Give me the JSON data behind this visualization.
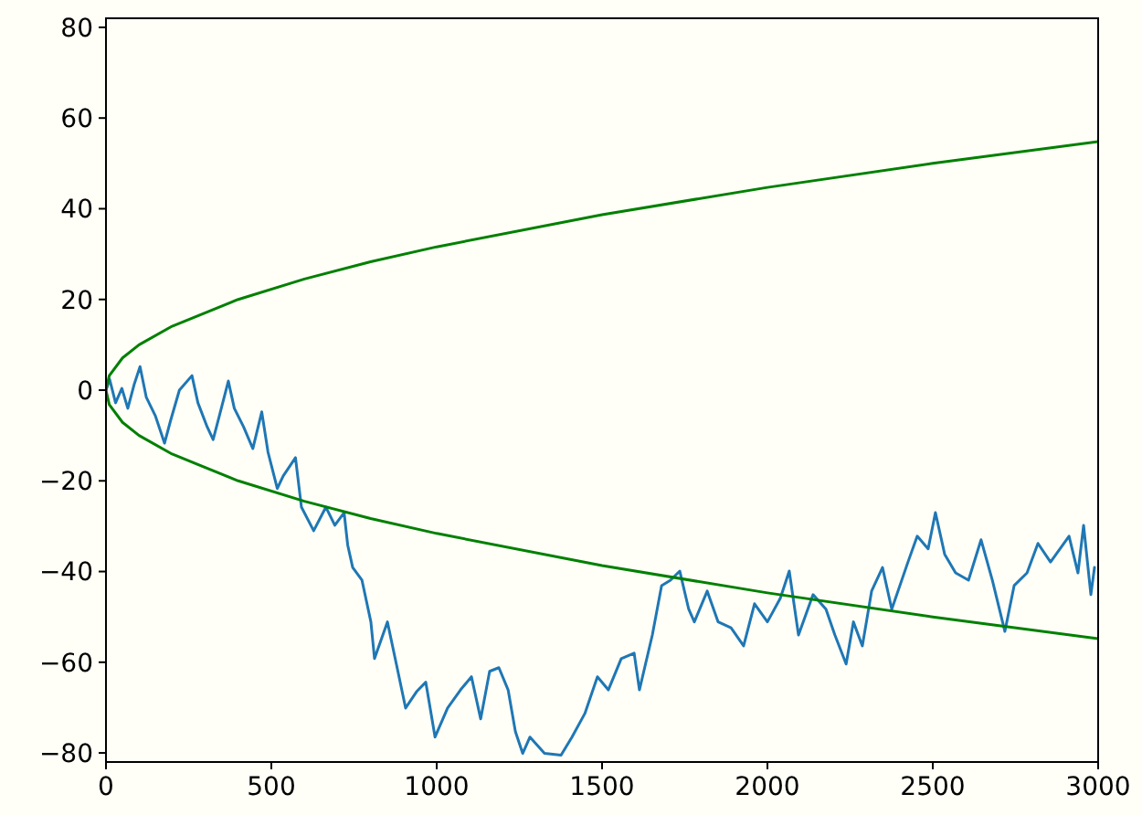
{
  "chart_data": {
    "type": "line",
    "xlim": [
      0,
      3000
    ],
    "ylim": [
      -82,
      82
    ],
    "xticks": [
      0,
      500,
      1000,
      1500,
      2000,
      2500,
      3000
    ],
    "yticks": [
      -80,
      -60,
      -40,
      -20,
      0,
      20,
      40,
      60,
      80
    ],
    "grid": false,
    "marker": "none",
    "line_style": "solid",
    "series": [
      {
        "color": "#1f77b4",
        "x": [
          0,
          11,
          29,
          48,
          66,
          85,
          103,
          122,
          149,
          177,
          195,
          222,
          260,
          278,
          306,
          324,
          343,
          370,
          388,
          416,
          444,
          471,
          490,
          518,
          536,
          573,
          591,
          628,
          665,
          692,
          720,
          731,
          746,
          774,
          801,
          812,
          851,
          878,
          906,
          939,
          967,
          995,
          1033,
          1072,
          1105,
          1133,
          1160,
          1188,
          1216,
          1238,
          1260,
          1282,
          1326,
          1376,
          1409,
          1448,
          1486,
          1519,
          1558,
          1597,
          1613,
          1652,
          1680,
          1707,
          1735,
          1762,
          1779,
          1818,
          1851,
          1890,
          1928,
          1961,
          2000,
          2039,
          2066,
          2094,
          2138,
          2177,
          2204,
          2238,
          2260,
          2287,
          2315,
          2348,
          2376,
          2425,
          2453,
          2486,
          2508,
          2536,
          2569,
          2608,
          2646,
          2680,
          2718,
          2746,
          2785,
          2818,
          2856,
          2912,
          2939,
          2956,
          2978,
          2989
        ],
        "values": [
          0,
          2.4,
          -2.8,
          0.4,
          -4.0,
          1.2,
          5.2,
          -1.6,
          -5.6,
          -11.7,
          -6.8,
          0,
          3.2,
          -2.8,
          -8.1,
          -10.9,
          -5.6,
          2.0,
          -4.0,
          -8.1,
          -12.9,
          -4.8,
          -13.7,
          -21.7,
          -18.9,
          -14.9,
          -25.8,
          -31.0,
          -25.8,
          -29.8,
          -27.0,
          -34.2,
          -39.1,
          -41.9,
          -51.1,
          -59.2,
          -51.1,
          -60.4,
          -70.1,
          -66.5,
          -64.4,
          -76.5,
          -70.1,
          -66.1,
          -63.2,
          -72.5,
          -62.0,
          -61.2,
          -66.1,
          -75.3,
          -80.1,
          -76.5,
          -80.1,
          -80.5,
          -76.5,
          -71.3,
          -63.2,
          -66.1,
          -59.2,
          -58.0,
          -66.1,
          -54.0,
          -43.1,
          -41.9,
          -39.9,
          -48.3,
          -51.1,
          -44.3,
          -51.1,
          -52.4,
          -56.4,
          -47.1,
          -51.1,
          -45.9,
          -39.9,
          -54.0,
          -45.1,
          -48.3,
          -54.0,
          -60.4,
          -51.1,
          -56.4,
          -44.3,
          -39.1,
          -48.3,
          -37.9,
          -32.2,
          -35.0,
          -27.0,
          -36.2,
          -40.3,
          -41.9,
          -33.0,
          -41.9,
          -53.2,
          -43.1,
          -40.3,
          -33.8,
          -37.9,
          -32.2,
          -40.3,
          -29.8,
          -45.1,
          -39.1
        ]
      },
      {
        "color": "#008000",
        "x": [
          3000,
          2500,
          2000,
          1500,
          1000,
          800,
          600,
          400,
          200,
          100,
          50,
          10,
          0,
          10,
          50,
          100,
          200,
          400,
          600,
          800,
          1000,
          1500,
          2000,
          2500,
          3000
        ],
        "values": [
          54.8,
          50,
          44.7,
          38.7,
          31.6,
          28.3,
          24.5,
          20,
          14.1,
          10,
          7.1,
          3.2,
          0,
          -3.2,
          -7.1,
          -10,
          -14.1,
          -20,
          -24.5,
          -28.3,
          -31.6,
          -38.7,
          -44.7,
          -50,
          -54.8
        ]
      }
    ]
  }
}
